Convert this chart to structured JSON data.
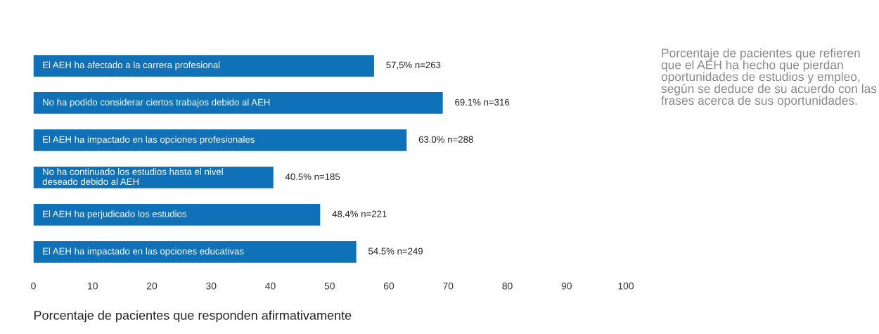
{
  "chart_data": {
    "type": "bar",
    "orientation": "horizontal",
    "categories": [
      "El AEH ha afectado a la carrera profesional",
      "No ha podido considerar ciertos trabajos debido al AEH",
      "El AEH ha impactado en las opciones profesionales",
      "No ha continuado los estudios hasta el nivel\ndeseado debido al AEH",
      "El AEH ha perjudicado los estudios",
      "El AEH ha impactado en las opciones educativas"
    ],
    "values": [
      57.5,
      69.1,
      63.0,
      40.5,
      48.4,
      54.5
    ],
    "value_labels": [
      "57,5% n=263",
      "69.1% n=316",
      "63.0% n=288",
      "40.5% n=185",
      "48.4% n=221",
      "54.5% n=249"
    ],
    "color": "#0f72b9",
    "xlim": [
      0,
      100
    ],
    "xticks": [
      0,
      10,
      20,
      30,
      40,
      50,
      60,
      70,
      80,
      90,
      100
    ],
    "xlabel": "Porcentaje de pacientes que responden afirmativamente",
    "annotations": [
      "Porcentaje de pacientes que refieren que el AEH ha hecho que pierdan oportunidades de estudios y empleo, según se deduce de su acuerdo con las frases acerca de sus oportunidades."
    ],
    "grid": false,
    "legend": false
  }
}
